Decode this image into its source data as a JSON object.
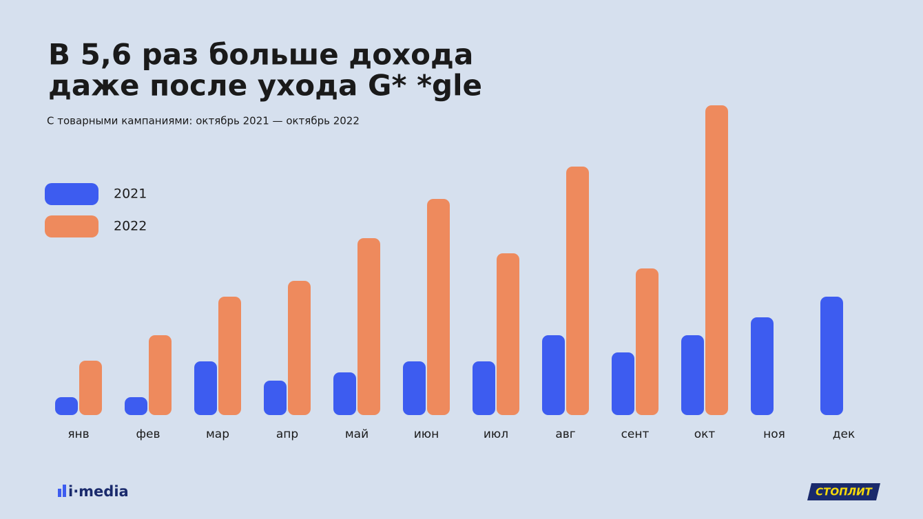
{
  "chart_data": {
    "type": "bar",
    "title": [
      "В 5,6 раз больше дохода",
      "даже после ухода G* *gle"
    ],
    "subtitle": "С товарными кампаниями: октябрь 2021 — октябрь 2022",
    "categories": [
      "янв",
      "фев",
      "мар",
      "апр",
      "май",
      "июн",
      "июл",
      "авг",
      "сент",
      "окт",
      "ноя",
      "дек"
    ],
    "series": [
      {
        "name": "2021",
        "color": "#3d5cf0",
        "values": [
          26,
          26,
          78,
          50,
          62,
          78,
          78,
          116,
          91,
          116,
          142,
          172
        ]
      },
      {
        "name": "2022",
        "color": "#ee8a5d",
        "values": [
          79,
          116,
          172,
          195,
          257,
          314,
          235,
          361,
          213,
          450,
          null,
          null
        ]
      }
    ],
    "ylim": [
      0,
      450
    ],
    "logos": [
      "i·media",
      "СТОПЛИТ"
    ]
  }
}
